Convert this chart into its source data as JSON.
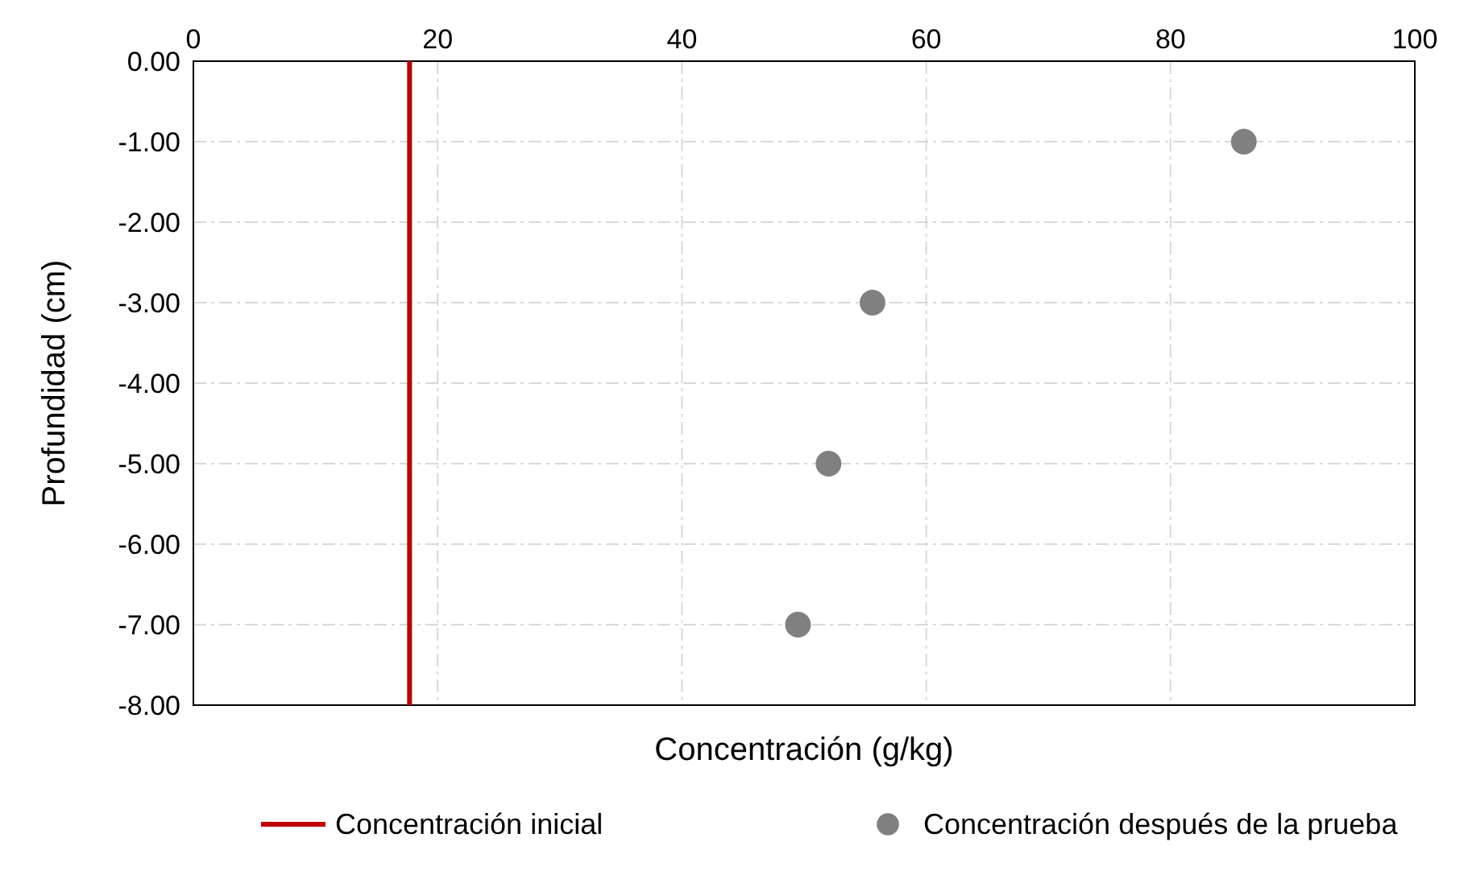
{
  "chart_data": {
    "type": "scatter",
    "xlabel": "Concentración (g/kg)",
    "ylabel": "Profundidad (cm)",
    "xlim": [
      0,
      100
    ],
    "xticks": [
      0,
      20,
      40,
      60,
      80,
      100
    ],
    "ylim": [
      -8,
      0
    ],
    "yticks": [
      {
        "value": 0,
        "label": "0.00"
      },
      {
        "value": -1,
        "label": "-1.00"
      },
      {
        "value": -2,
        "label": "-2.00"
      },
      {
        "value": -3,
        "label": "-3.00"
      },
      {
        "value": -4,
        "label": "-4.00"
      },
      {
        "value": -5,
        "label": "-5.00"
      },
      {
        "value": -6,
        "label": "-6.00"
      },
      {
        "value": -7,
        "label": "-7.00"
      },
      {
        "value": -8,
        "label": "-8.00"
      }
    ],
    "grid": true,
    "legend": "bottom",
    "series": [
      {
        "name": "Concentración inicial",
        "type": "line",
        "color": "#c00000",
        "x": [
          17.7,
          17.7
        ],
        "values": [
          0,
          -8
        ]
      },
      {
        "name": "Concentración después de la prueba",
        "color": "#808080",
        "x": [
          86,
          55.6,
          52,
          49.5
        ],
        "values": [
          -1,
          -3,
          -5,
          -7
        ],
        "marker": "circle"
      }
    ]
  }
}
